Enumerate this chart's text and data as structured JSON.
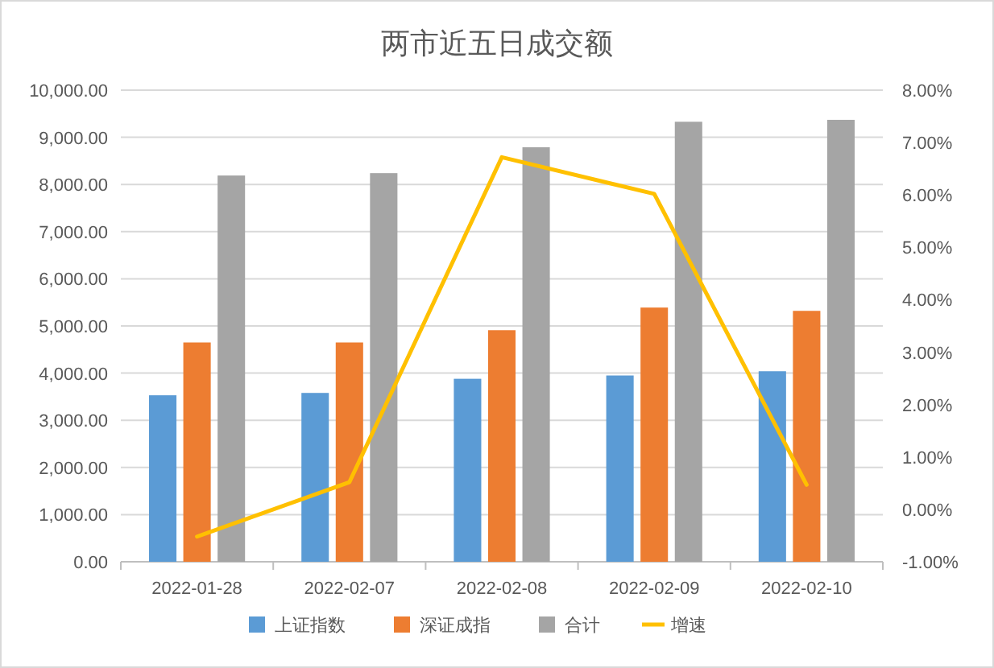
{
  "chart_data": {
    "type": "bar",
    "title": "两市近五日成交额",
    "categories": [
      "2022-01-28",
      "2022-02-07",
      "2022-02-08",
      "2022-02-09",
      "2022-02-10"
    ],
    "series": [
      {
        "name": "上证指数",
        "color": "#5b9bd5",
        "values": [
          3530,
          3580,
          3880,
          3950,
          4040
        ]
      },
      {
        "name": "深证成指",
        "color": "#ed7d31",
        "values": [
          4650,
          4650,
          4910,
          5390,
          5320
        ]
      },
      {
        "name": "合计",
        "color": "#a5a5a5",
        "values": [
          8190,
          8240,
          8790,
          9330,
          9370
        ]
      },
      {
        "name": "增速",
        "type": "line",
        "axis": "y2",
        "color": "#ffc000",
        "values": [
          -0.52,
          0.52,
          6.72,
          6.02,
          0.47
        ]
      }
    ],
    "ylim": [
      0,
      10000
    ],
    "yticks": [
      {
        "value": 0,
        "label": "0.00"
      },
      {
        "value": 1000,
        "label": "1,000.00"
      },
      {
        "value": 2000,
        "label": "2,000.00"
      },
      {
        "value": 3000,
        "label": "3,000.00"
      },
      {
        "value": 4000,
        "label": "4,000.00"
      },
      {
        "value": 5000,
        "label": "5,000.00"
      },
      {
        "value": 6000,
        "label": "6,000.00"
      },
      {
        "value": 7000,
        "label": "7,000.00"
      },
      {
        "value": 8000,
        "label": "8,000.00"
      },
      {
        "value": 9000,
        "label": "9,000.00"
      },
      {
        "value": 10000,
        "label": "10,000.00"
      }
    ],
    "y2lim": [
      -1,
      8
    ],
    "y2ticks": [
      {
        "value": -1,
        "label": "-1.00%"
      },
      {
        "value": 0,
        "label": "0.00%"
      },
      {
        "value": 1,
        "label": "1.00%"
      },
      {
        "value": 2,
        "label": "2.00%"
      },
      {
        "value": 3,
        "label": "3.00%"
      },
      {
        "value": 4,
        "label": "4.00%"
      },
      {
        "value": 5,
        "label": "5.00%"
      },
      {
        "value": 6,
        "label": "6.00%"
      },
      {
        "value": 7,
        "label": "7.00%"
      },
      {
        "value": 8,
        "label": "8.00%"
      }
    ],
    "grid": "y",
    "legend": "bottom"
  }
}
